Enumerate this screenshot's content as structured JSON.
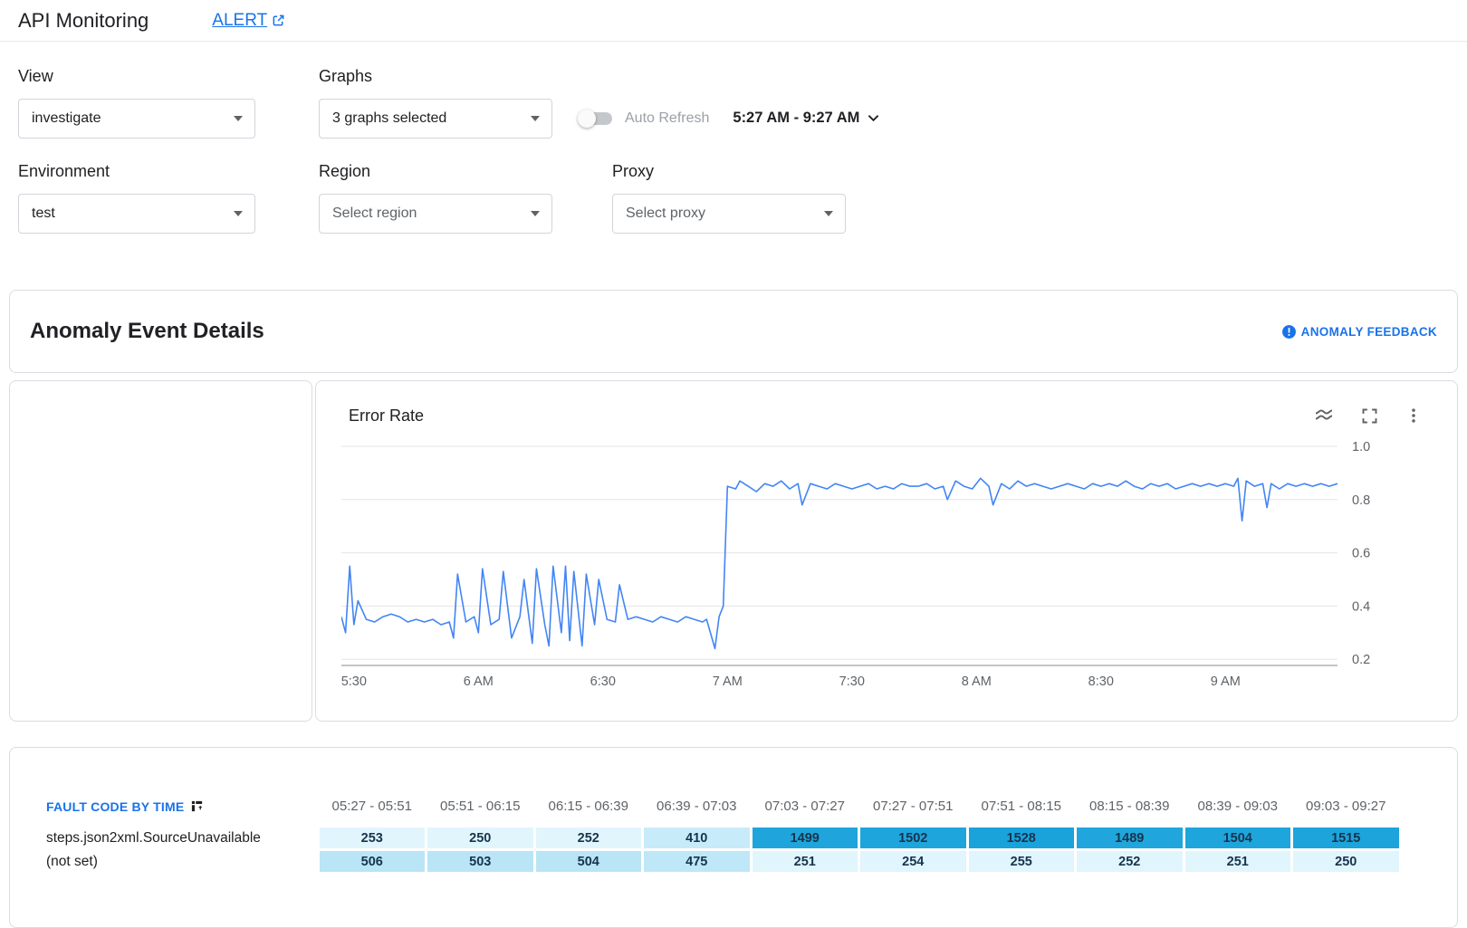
{
  "header": {
    "title": "API Monitoring",
    "alert_link": "ALERT"
  },
  "filters": {
    "view": {
      "label": "View",
      "value": "investigate"
    },
    "graphs": {
      "label": "Graphs",
      "value": "3 graphs selected"
    },
    "auto_refresh": {
      "label": "Auto Refresh",
      "enabled": false
    },
    "time_range": "5:27 AM - 9:27 AM",
    "environment": {
      "label": "Environment",
      "value": "test"
    },
    "region": {
      "label": "Region",
      "placeholder": "Select region"
    },
    "proxy": {
      "label": "Proxy",
      "placeholder": "Select proxy"
    }
  },
  "anomaly": {
    "title": "Anomaly Event Details",
    "feedback_label": "ANOMALY FEEDBACK"
  },
  "chart_data": {
    "type": "line",
    "title": "Error Rate",
    "line_color": "#4285f4",
    "x_range_minutes": [
      0,
      240
    ],
    "x_start_time": "5:27 AM",
    "x_end_time": "9:27 AM",
    "ylim": [
      0.18,
      1.0
    ],
    "y_ticks": [
      "1.0",
      "0.8",
      "0.6",
      "0.4",
      "0.2"
    ],
    "x_ticks": [
      {
        "label": "5:30",
        "m": 3
      },
      {
        "label": "6 AM",
        "m": 33
      },
      {
        "label": "6:30",
        "m": 63
      },
      {
        "label": "7 AM",
        "m": 93
      },
      {
        "label": "7:30",
        "m": 123
      },
      {
        "label": "8 AM",
        "m": 153
      },
      {
        "label": "8:30",
        "m": 183
      },
      {
        "label": "9 AM",
        "m": 213
      }
    ],
    "points": [
      [
        0,
        0.36
      ],
      [
        1,
        0.3
      ],
      [
        2,
        0.55
      ],
      [
        3,
        0.33
      ],
      [
        4,
        0.42
      ],
      [
        6,
        0.35
      ],
      [
        8,
        0.34
      ],
      [
        10,
        0.36
      ],
      [
        12,
        0.37
      ],
      [
        14,
        0.36
      ],
      [
        16,
        0.34
      ],
      [
        18,
        0.35
      ],
      [
        20,
        0.34
      ],
      [
        22,
        0.35
      ],
      [
        24,
        0.33
      ],
      [
        26,
        0.34
      ],
      [
        27,
        0.28
      ],
      [
        28,
        0.52
      ],
      [
        30,
        0.34
      ],
      [
        32,
        0.36
      ],
      [
        33,
        0.3
      ],
      [
        34,
        0.54
      ],
      [
        36,
        0.33
      ],
      [
        38,
        0.35
      ],
      [
        39,
        0.53
      ],
      [
        41,
        0.28
      ],
      [
        43,
        0.36
      ],
      [
        44,
        0.5
      ],
      [
        46,
        0.26
      ],
      [
        47,
        0.54
      ],
      [
        49,
        0.33
      ],
      [
        50,
        0.25
      ],
      [
        51,
        0.55
      ],
      [
        53,
        0.3
      ],
      [
        54,
        0.55
      ],
      [
        55,
        0.27
      ],
      [
        56,
        0.53
      ],
      [
        58,
        0.25
      ],
      [
        59,
        0.52
      ],
      [
        61,
        0.33
      ],
      [
        62,
        0.5
      ],
      [
        64,
        0.35
      ],
      [
        66,
        0.34
      ],
      [
        67,
        0.48
      ],
      [
        69,
        0.35
      ],
      [
        71,
        0.36
      ],
      [
        73,
        0.35
      ],
      [
        75,
        0.34
      ],
      [
        77,
        0.36
      ],
      [
        79,
        0.35
      ],
      [
        81,
        0.34
      ],
      [
        83,
        0.36
      ],
      [
        85,
        0.35
      ],
      [
        87,
        0.34
      ],
      [
        88,
        0.35
      ],
      [
        90,
        0.24
      ],
      [
        91,
        0.36
      ],
      [
        92,
        0.4
      ],
      [
        93,
        0.85
      ],
      [
        95,
        0.84
      ],
      [
        96,
        0.87
      ],
      [
        98,
        0.85
      ],
      [
        100,
        0.83
      ],
      [
        102,
        0.86
      ],
      [
        104,
        0.85
      ],
      [
        106,
        0.87
      ],
      [
        108,
        0.84
      ],
      [
        110,
        0.86
      ],
      [
        111,
        0.78
      ],
      [
        113,
        0.86
      ],
      [
        115,
        0.85
      ],
      [
        117,
        0.84
      ],
      [
        119,
        0.86
      ],
      [
        121,
        0.85
      ],
      [
        123,
        0.84
      ],
      [
        125,
        0.85
      ],
      [
        127,
        0.86
      ],
      [
        129,
        0.84
      ],
      [
        131,
        0.85
      ],
      [
        133,
        0.84
      ],
      [
        135,
        0.86
      ],
      [
        137,
        0.85
      ],
      [
        139,
        0.85
      ],
      [
        141,
        0.86
      ],
      [
        143,
        0.84
      ],
      [
        145,
        0.85
      ],
      [
        146,
        0.8
      ],
      [
        148,
        0.87
      ],
      [
        150,
        0.85
      ],
      [
        152,
        0.84
      ],
      [
        154,
        0.88
      ],
      [
        156,
        0.85
      ],
      [
        157,
        0.78
      ],
      [
        159,
        0.86
      ],
      [
        161,
        0.84
      ],
      [
        163,
        0.87
      ],
      [
        165,
        0.85
      ],
      [
        167,
        0.86
      ],
      [
        169,
        0.85
      ],
      [
        171,
        0.84
      ],
      [
        173,
        0.85
      ],
      [
        175,
        0.86
      ],
      [
        177,
        0.85
      ],
      [
        179,
        0.84
      ],
      [
        181,
        0.86
      ],
      [
        183,
        0.85
      ],
      [
        185,
        0.86
      ],
      [
        187,
        0.85
      ],
      [
        189,
        0.87
      ],
      [
        191,
        0.85
      ],
      [
        193,
        0.84
      ],
      [
        195,
        0.86
      ],
      [
        197,
        0.85
      ],
      [
        199,
        0.86
      ],
      [
        201,
        0.84
      ],
      [
        203,
        0.85
      ],
      [
        205,
        0.86
      ],
      [
        207,
        0.85
      ],
      [
        209,
        0.86
      ],
      [
        211,
        0.85
      ],
      [
        213,
        0.86
      ],
      [
        215,
        0.85
      ],
      [
        216,
        0.88
      ],
      [
        217,
        0.72
      ],
      [
        218,
        0.87
      ],
      [
        220,
        0.85
      ],
      [
        222,
        0.86
      ],
      [
        223,
        0.77
      ],
      [
        224,
        0.86
      ],
      [
        226,
        0.84
      ],
      [
        228,
        0.86
      ],
      [
        230,
        0.85
      ],
      [
        232,
        0.86
      ],
      [
        234,
        0.85
      ],
      [
        236,
        0.86
      ],
      [
        238,
        0.85
      ],
      [
        240,
        0.86
      ]
    ]
  },
  "fault_table": {
    "title": "FAULT CODE BY TIME",
    "columns": [
      "05:27 - 05:51",
      "05:51 - 06:15",
      "06:15 - 06:39",
      "06:39 - 07:03",
      "07:03 - 07:27",
      "07:27 - 07:51",
      "07:51 - 08:15",
      "08:15 - 08:39",
      "08:39 - 09:03",
      "09:03 - 09:27"
    ],
    "rows": [
      {
        "label": "steps.json2xml.SourceUnavailable",
        "values": [
          253,
          250,
          252,
          410,
          1499,
          1502,
          1528,
          1489,
          1504,
          1515
        ]
      },
      {
        "label": "(not set)",
        "values": [
          506,
          503,
          504,
          475,
          251,
          254,
          255,
          252,
          251,
          250
        ]
      }
    ],
    "heat_min": 250,
    "heat_max": 1528,
    "heat_color_light": "#e1f5fd",
    "heat_color_dark": "#1aa3db"
  }
}
